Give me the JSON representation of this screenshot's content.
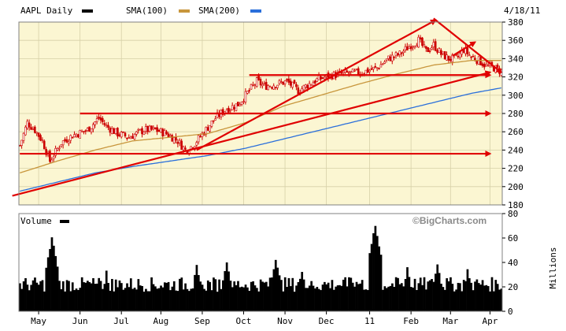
{
  "header": {
    "symbol_label": "AAPL Daily",
    "sma100_label": "SMA(100)",
    "sma200_label": "SMA(200)",
    "date": "4/18/11"
  },
  "colors": {
    "plot_bg": "#fbf6d2",
    "grid": "#d6d0a8",
    "price_candle": "#cc0000",
    "sma100": "#c8963c",
    "sma200": "#2a6fdb",
    "trendline": "#e00000",
    "volume": "#000000",
    "frame": "#808080"
  },
  "volume_panel": {
    "label": "Volume",
    "unit_label": "Millions",
    "brand": "©BigCharts.com"
  },
  "chart_data": [
    {
      "type": "candlestick",
      "name": "price",
      "ylim": [
        180,
        380
      ],
      "yticks": [
        180,
        200,
        220,
        240,
        260,
        280,
        300,
        320,
        340,
        360,
        380
      ],
      "xticks": [
        "May",
        "Jun",
        "Jul",
        "Aug",
        "Sep",
        "Oct",
        "Nov",
        "Dec",
        "11",
        "Feb",
        "Mar",
        "Apr"
      ],
      "grid": true,
      "close_keypoints": [
        [
          0,
          245
        ],
        [
          4,
          270
        ],
        [
          8,
          262
        ],
        [
          12,
          250
        ],
        [
          16,
          228
        ],
        [
          22,
          248
        ],
        [
          28,
          256
        ],
        [
          36,
          262
        ],
        [
          42,
          275
        ],
        [
          46,
          266
        ],
        [
          52,
          258
        ],
        [
          58,
          254
        ],
        [
          66,
          262
        ],
        [
          72,
          262
        ],
        [
          78,
          258
        ],
        [
          84,
          250
        ],
        [
          88,
          240
        ],
        [
          92,
          245
        ],
        [
          98,
          260
        ],
        [
          104,
          275
        ],
        [
          110,
          285
        ],
        [
          116,
          290
        ],
        [
          120,
          300
        ],
        [
          126,
          315
        ],
        [
          130,
          310
        ],
        [
          136,
          312
        ],
        [
          142,
          315
        ],
        [
          148,
          305
        ],
        [
          152,
          310
        ],
        [
          158,
          317
        ],
        [
          166,
          322
        ],
        [
          174,
          324
        ],
        [
          182,
          325
        ],
        [
          190,
          330
        ],
        [
          196,
          340
        ],
        [
          202,
          345
        ],
        [
          208,
          355
        ],
        [
          212,
          360
        ],
        [
          216,
          348
        ],
        [
          220,
          355
        ],
        [
          224,
          345
        ],
        [
          228,
          340
        ],
        [
          232,
          340
        ],
        [
          236,
          350
        ],
        [
          240,
          342
        ],
        [
          244,
          338
        ],
        [
          248,
          332
        ],
        [
          252,
          330
        ],
        [
          256,
          326
        ]
      ],
      "sma100_keypoints": [
        [
          0,
          215
        ],
        [
          20,
          228
        ],
        [
          40,
          240
        ],
        [
          60,
          250
        ],
        [
          80,
          254
        ],
        [
          100,
          258
        ],
        [
          120,
          270
        ],
        [
          140,
          288
        ],
        [
          160,
          300
        ],
        [
          180,
          312
        ],
        [
          200,
          323
        ],
        [
          220,
          333
        ],
        [
          240,
          338
        ],
        [
          256,
          338
        ]
      ],
      "sma200_keypoints": [
        [
          0,
          195
        ],
        [
          20,
          205
        ],
        [
          40,
          215
        ],
        [
          60,
          222
        ],
        [
          80,
          228
        ],
        [
          100,
          234
        ],
        [
          120,
          242
        ],
        [
          140,
          252
        ],
        [
          160,
          262
        ],
        [
          180,
          272
        ],
        [
          200,
          282
        ],
        [
          220,
          292
        ],
        [
          240,
          302
        ],
        [
          256,
          308
        ]
      ],
      "annotations": {
        "rising_channel_upper": [
          [
            94,
            240
          ],
          [
            221,
            382
          ]
        ],
        "rising_channel_lower": [
          [
            -4,
            190
          ],
          [
            250,
            325
          ]
        ],
        "falling_line": [
          [
            220,
            384
          ],
          [
            256,
            325
          ]
        ],
        "horizontal_lines": [
          {
            "y": 236,
            "from": 0,
            "to": 250
          },
          {
            "y": 280,
            "from": 32,
            "to": 250
          },
          {
            "y": 322,
            "from": 122,
            "to": 250
          }
        ],
        "short_arrow": [
          [
            230,
            343
          ],
          [
            242,
            358
          ]
        ]
      }
    },
    {
      "type": "bar",
      "name": "volume",
      "ylim": [
        0,
        80
      ],
      "yticks": [
        0,
        20,
        40,
        60,
        80
      ],
      "spike_positions": [
        [
          17,
          58
        ],
        [
          46,
          30
        ],
        [
          94,
          34
        ],
        [
          110,
          40
        ],
        [
          136,
          42
        ],
        [
          150,
          32
        ],
        [
          176,
          26
        ],
        [
          189,
          68
        ],
        [
          206,
          34
        ],
        [
          222,
          38
        ],
        [
          238,
          32
        ]
      ]
    }
  ]
}
